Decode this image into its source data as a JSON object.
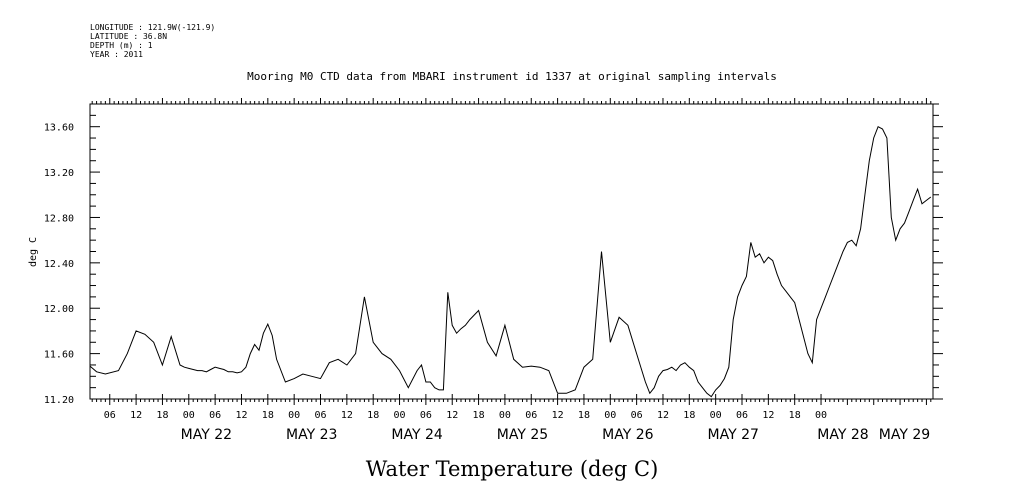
{
  "metadata": {
    "longitude": "LONGITUDE : 121.9W(-121.9)",
    "latitude": "LATITUDE : 36.8N",
    "depth": "DEPTH (m) : 1",
    "year": "YEAR : 2011"
  },
  "chart_data": {
    "type": "line",
    "title": "Mooring M0 CTD data from MBARI instrument id 1337 at original sampling intervals",
    "xlabel": "Water Temperature (deg C)",
    "ylabel": "deg C",
    "x_unit": "hours since 2011-05-21 00:00",
    "xlim": [
      1.5,
      193.5
    ],
    "ylim": [
      11.2,
      13.8
    ],
    "yticks": [
      "11.20",
      "11.60",
      "12.00",
      "12.40",
      "12.80",
      "13.20",
      "13.60"
    ],
    "hour_ticks": [
      "06",
      "12",
      "18",
      "00",
      "06",
      "12",
      "18",
      "00",
      "06",
      "12",
      "18",
      "00",
      "06",
      "12",
      "18",
      "00",
      "06",
      "12",
      "18",
      "00",
      "06",
      "12",
      "18",
      "00",
      "06",
      "12",
      "18",
      "00"
    ],
    "day_labels": [
      "MAY 22",
      "MAY 23",
      "MAY 24",
      "MAY 25",
      "MAY 26",
      "MAY 27",
      "MAY 28",
      "MAY 29"
    ],
    "grid": false,
    "series": [
      {
        "name": "",
        "color": "#000000",
        "x": [
          1.5,
          3,
          5,
          8,
          10,
          12,
          14,
          16,
          18,
          20,
          22,
          23,
          24,
          25,
          26,
          27,
          28,
          29,
          30,
          31,
          32,
          33,
          34,
          35,
          36,
          37,
          38,
          39,
          40,
          41,
          42,
          43,
          44,
          46,
          48,
          50,
          52,
          54,
          56,
          58,
          60,
          62,
          64,
          66,
          68,
          70,
          72,
          74,
          76,
          77,
          78,
          79,
          80,
          81,
          82,
          83,
          84,
          85,
          86,
          87,
          88,
          90,
          92,
          94,
          96,
          98,
          100,
          102,
          104,
          106,
          108,
          110,
          112,
          114,
          116,
          118,
          120,
          122,
          124,
          126,
          128,
          129,
          130,
          131,
          132,
          133,
          134,
          135,
          136,
          137,
          138,
          139,
          140,
          141,
          142,
          143,
          144,
          145,
          146,
          147,
          148,
          149,
          150,
          151,
          152,
          153,
          154,
          155,
          156,
          157,
          158,
          159,
          160,
          161,
          162,
          163,
          164,
          165,
          166,
          167,
          168,
          169,
          170,
          171,
          172,
          173,
          174,
          175,
          176,
          177,
          178,
          179,
          180,
          181,
          182,
          183,
          184,
          185,
          186,
          187,
          188,
          189,
          190,
          191,
          192,
          193
        ],
        "y": [
          11.49,
          11.44,
          11.42,
          11.45,
          11.6,
          11.8,
          11.77,
          11.7,
          11.5,
          11.75,
          11.5,
          11.48,
          11.47,
          11.46,
          11.45,
          11.45,
          11.44,
          11.46,
          11.48,
          11.47,
          11.46,
          11.44,
          11.44,
          11.43,
          11.44,
          11.48,
          11.6,
          11.68,
          11.63,
          11.78,
          11.86,
          11.76,
          11.55,
          11.35,
          11.38,
          11.42,
          11.4,
          11.38,
          11.52,
          11.55,
          11.5,
          11.6,
          12.1,
          11.7,
          11.6,
          11.55,
          11.45,
          11.3,
          11.45,
          11.5,
          11.35,
          11.35,
          11.3,
          11.28,
          11.28,
          12.14,
          11.85,
          11.78,
          11.82,
          11.85,
          11.9,
          11.98,
          11.7,
          11.58,
          11.85,
          11.55,
          11.48,
          11.49,
          11.48,
          11.45,
          11.25,
          11.25,
          11.28,
          11.48,
          11.55,
          12.5,
          11.7,
          11.92,
          11.85,
          11.6,
          11.35,
          11.25,
          11.3,
          11.4,
          11.45,
          11.46,
          11.48,
          11.45,
          11.5,
          11.52,
          11.48,
          11.45,
          11.35,
          11.3,
          11.25,
          11.22,
          11.28,
          11.32,
          11.38,
          11.48,
          11.9,
          12.1,
          12.2,
          12.28,
          12.58,
          12.45,
          12.48,
          12.4,
          12.45,
          12.42,
          12.3,
          12.2,
          12.15,
          12.1,
          12.05,
          11.9,
          11.75,
          11.6,
          11.52,
          11.9,
          12.0,
          12.1,
          12.2,
          12.3,
          12.4,
          12.5,
          12.58,
          12.6,
          12.55,
          12.7,
          13.0,
          13.3,
          13.5,
          13.6,
          13.58,
          13.5,
          12.8,
          12.6,
          12.7,
          12.75,
          12.85,
          12.95,
          13.05,
          12.92,
          12.95,
          12.98
        ]
      }
    ]
  }
}
